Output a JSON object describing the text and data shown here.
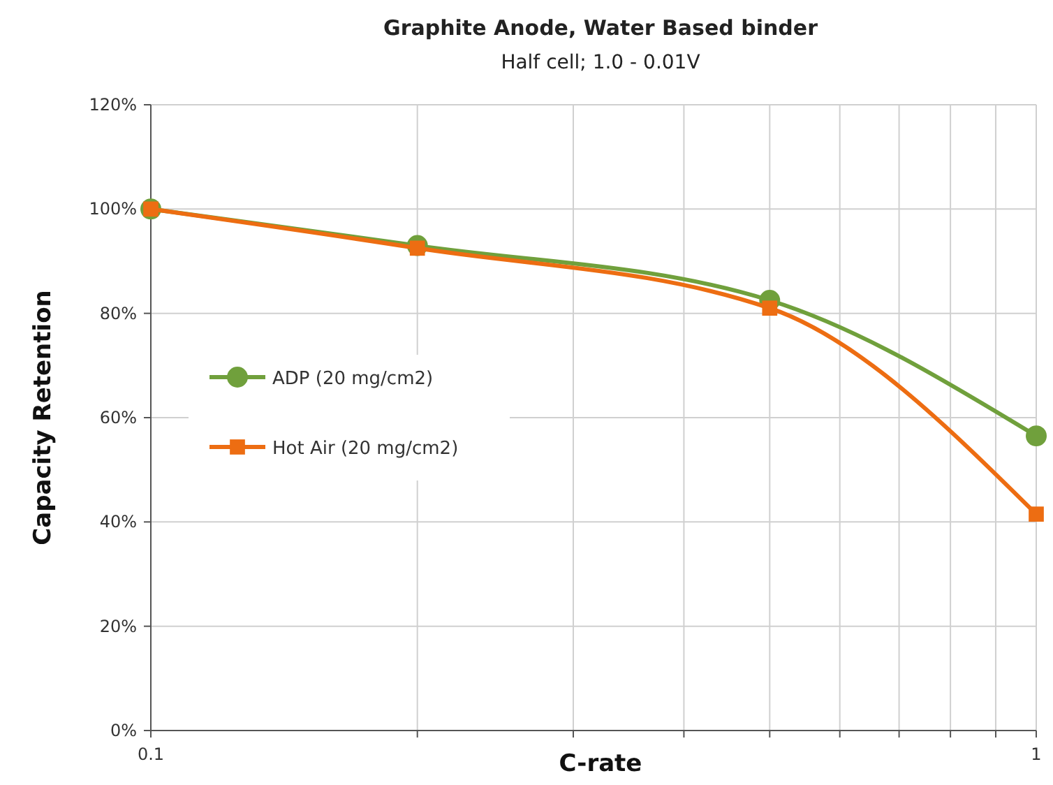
{
  "chart_data": {
    "type": "line",
    "title": "Graphite Anode, Water Based binder",
    "subtitle": "Half cell; 1.0 - 0.01V",
    "xlabel": "C-rate",
    "ylabel": "Capacity Retention",
    "log": "x",
    "x": [
      0.1,
      0.2,
      0.5,
      1
    ],
    "series": [
      {
        "name": "ADP (20 mg/cm2)",
        "color": "#70a03c",
        "marker": "circle",
        "values": [
          100,
          93,
          82.5,
          56.5
        ]
      },
      {
        "name": "Hot Air (20 mg/cm2)",
        "color": "#ed6d12",
        "marker": "square",
        "values": [
          100,
          92.5,
          81,
          41.5
        ]
      }
    ],
    "xlim": [
      0.1,
      1
    ],
    "xticks": [
      0.1,
      {
        "value": 0.2,
        "label": null
      },
      {
        "value": 0.3,
        "label": null
      },
      {
        "value": 0.4,
        "label": null
      },
      {
        "value": 0.5,
        "label": null
      },
      {
        "value": 0.6,
        "label": null
      },
      {
        "value": 0.7,
        "label": null
      },
      {
        "value": 0.8,
        "label": null
      },
      {
        "value": 0.9,
        "label": null
      },
      1
    ],
    "ylim": [
      0,
      120
    ],
    "yticks": [
      {
        "value": 0,
        "label": "0%"
      },
      {
        "value": 20,
        "label": "20%"
      },
      {
        "value": 40,
        "label": "40%"
      },
      {
        "value": 60,
        "label": "60%"
      },
      {
        "value": 80,
        "label": "80%"
      },
      {
        "value": 100,
        "label": "100%"
      },
      {
        "value": 120,
        "label": "120%"
      }
    ],
    "grid": true,
    "legend": "left",
    "line_style": "solid"
  }
}
